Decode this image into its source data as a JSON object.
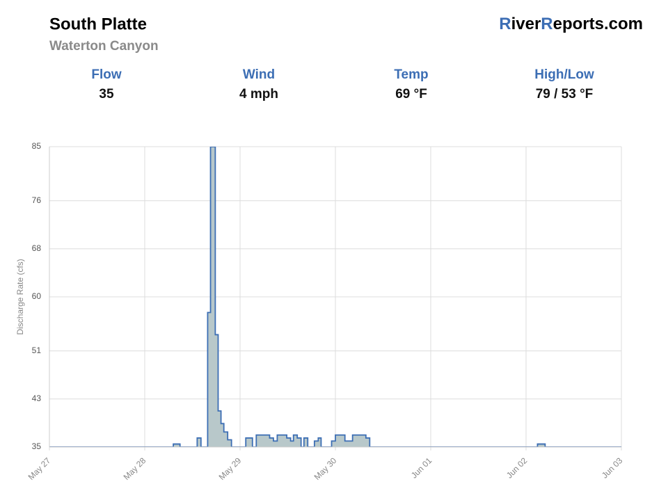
{
  "header": {
    "title": "South Platte",
    "subtitle": "Waterton Canyon",
    "logo": [
      "R",
      "iver",
      "R",
      "eports.com"
    ]
  },
  "stats": [
    {
      "label": "Flow",
      "value": "35"
    },
    {
      "label": "Wind",
      "value": "4 mph"
    },
    {
      "label": "Temp",
      "value": "69 °F"
    },
    {
      "label": "High/Low",
      "value": "79 / 53 °F"
    }
  ],
  "chart_data": {
    "type": "step-area",
    "y_label": "Discharge Rate (cfs)",
    "color": "#3c6eb4",
    "fill": "#b8c8ca",
    "grid": true,
    "x": [
      0,
      1.3,
      1.37,
      1.55,
      1.59,
      1.66,
      1.69,
      1.74,
      1.77,
      1.8,
      1.83,
      1.87,
      1.91,
      2.06,
      2.13,
      2.17,
      2.31,
      2.35,
      2.39,
      2.49,
      2.53,
      2.56,
      2.6,
      2.64,
      2.67,
      2.71,
      2.78,
      2.82,
      2.85,
      2.96,
      3.0,
      3.1,
      3.18,
      3.32,
      3.36,
      5.12,
      5.2,
      6
    ],
    "values": [
      35,
      35.5,
      35,
      36.5,
      35,
      57.4,
      85,
      53.7,
      41,
      38.9,
      37.5,
      36.2,
      35,
      36.5,
      35,
      37,
      36.5,
      36,
      37,
      36.5,
      36,
      37,
      36.5,
      35,
      36.5,
      35,
      36,
      36.5,
      35,
      36,
      37,
      36,
      37,
      36.5,
      35,
      35.5,
      35,
      35
    ],
    "xlim": [
      0,
      6
    ],
    "xticks": [
      {
        "value": 0,
        "label": "May 27"
      },
      {
        "value": 1,
        "label": "May 28"
      },
      {
        "value": 2,
        "label": "May 29"
      },
      {
        "value": 3,
        "label": "May 30"
      },
      {
        "value": 4,
        "label": "Jun 01"
      },
      {
        "value": 5,
        "label": "Jun 02"
      },
      {
        "value": 6,
        "label": "Jun 03"
      }
    ],
    "ylim": [
      35,
      85
    ],
    "yticks": [
      35,
      43,
      51,
      60,
      68,
      76,
      85
    ]
  }
}
